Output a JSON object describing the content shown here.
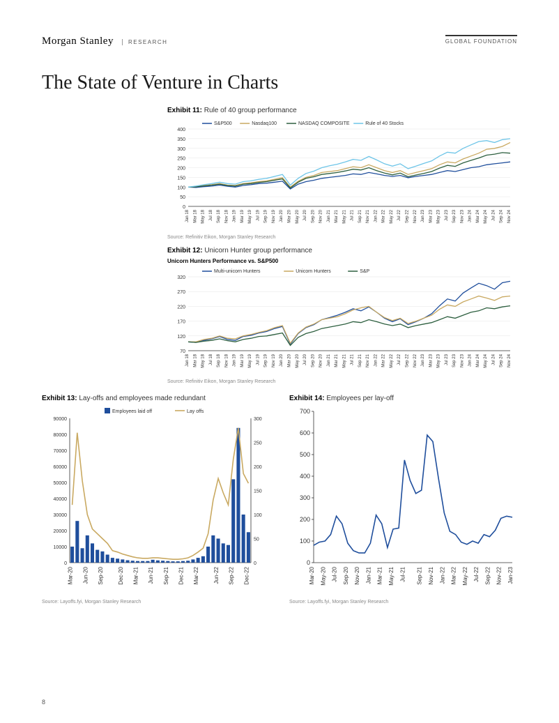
{
  "header": {
    "brand": "Morgan Stanley",
    "sub": "RESEARCH",
    "right": "GLOBAL FOUNDATION"
  },
  "title": "The State of Venture in Charts",
  "page_number": "8",
  "exhibit11": {
    "label": "Exhibit 11:",
    "title": "Rule of 40 group performance",
    "source": "Source: Refinitiv Eikon, Morgan Stanley Research",
    "type": "line",
    "x_labels": [
      "Jan 18",
      "Mar 18",
      "May 18",
      "Jul 18",
      "Sep 18",
      "Nov 18",
      "Jan 19",
      "Mar 19",
      "May 19",
      "Jul 19",
      "Sep 19",
      "Nov 19",
      "Jan 20",
      "Mar 20",
      "May 20",
      "Jul 20",
      "Sep 20",
      "Nov 20",
      "Jan 21",
      "Mar 21",
      "May 21",
      "Jul 21",
      "Sep 21",
      "Nov 21",
      "Jan 22",
      "Mar 22",
      "May 22",
      "Jul 22",
      "Sep 22",
      "Nov 22",
      "Jan 23",
      "Mar 23",
      "May 23",
      "Jul 23",
      "Sep 23",
      "Nov 23",
      "Jan 24",
      "Mar 24",
      "May 24",
      "Jul 24",
      "Sep 24",
      "Nov 24"
    ],
    "ylim": [
      0,
      400
    ],
    "ytick_step": 50,
    "series": [
      {
        "name": "S&P500",
        "color": "#1f4e9c",
        "values": [
          100,
          98,
          102,
          105,
          110,
          104,
          100,
          108,
          112,
          118,
          120,
          125,
          130,
          90,
          115,
          128,
          135,
          145,
          150,
          155,
          160,
          168,
          165,
          175,
          168,
          160,
          155,
          160,
          148,
          155,
          160,
          165,
          175,
          185,
          180,
          190,
          200,
          205,
          215,
          220,
          225,
          230
        ]
      },
      {
        "name": "Nasdaq100",
        "color": "#c9a961",
        "values": [
          100,
          102,
          108,
          112,
          118,
          110,
          108,
          118,
          122,
          128,
          132,
          140,
          148,
          100,
          130,
          150,
          160,
          175,
          180,
          185,
          195,
          205,
          200,
          215,
          200,
          185,
          175,
          185,
          165,
          175,
          185,
          195,
          215,
          230,
          225,
          245,
          260,
          275,
          295,
          300,
          310,
          330
        ]
      },
      {
        "name": "NASDAQ COMPOSITE",
        "color": "#2d5f3f",
        "values": [
          100,
          101,
          106,
          110,
          115,
          108,
          105,
          115,
          118,
          124,
          128,
          135,
          142,
          95,
          125,
          145,
          153,
          165,
          170,
          175,
          183,
          192,
          188,
          200,
          185,
          172,
          163,
          172,
          153,
          162,
          170,
          180,
          198,
          212,
          207,
          225,
          238,
          250,
          265,
          270,
          278,
          275
        ]
      },
      {
        "name": "Rule of 40 Stocks",
        "color": "#6ec5e8",
        "values": [
          100,
          105,
          112,
          118,
          125,
          118,
          115,
          128,
          132,
          140,
          145,
          155,
          165,
          110,
          145,
          170,
          182,
          200,
          210,
          218,
          230,
          243,
          238,
          258,
          240,
          220,
          208,
          220,
          195,
          208,
          222,
          235,
          260,
          280,
          275,
          300,
          318,
          335,
          340,
          330,
          345,
          350
        ]
      }
    ]
  },
  "exhibit12": {
    "label": "Exhibit 12:",
    "title": "Unicorn Hunter group performance",
    "subtitle": "Unicorn Hunters Performance vs. S&P500",
    "source": "Source: Refinitiv Eikon, Morgan Stanley Research",
    "type": "line",
    "x_labels": [
      "Jan 18",
      "Mar 18",
      "May 18",
      "Jul 18",
      "Sep 18",
      "Nov 18",
      "Jan 19",
      "Mar 19",
      "May 19",
      "Jul 19",
      "Sep 19",
      "Nov 19",
      "Jan 20",
      "Mar 20",
      "May 20",
      "Jul 20",
      "Sep 20",
      "Nov 20",
      "Jan 21",
      "Mar 21",
      "May 21",
      "Jul 21",
      "Sep 21",
      "Nov 21",
      "Jan 22",
      "Mar 22",
      "May 22",
      "Jul 22",
      "Sep 22",
      "Nov 22",
      "Jan 23",
      "Mar 23",
      "May 23",
      "Jul 23",
      "Sep 23",
      "Nov 23",
      "Jan 24",
      "Mar 24",
      "May 24",
      "Jul 24",
      "Sep 24",
      "Nov 24"
    ],
    "ylim": [
      70,
      320
    ],
    "ytick_step": 50,
    "series": [
      {
        "name": "Multi-unicorn Hunters",
        "color": "#1f4e9c",
        "values": [
          100,
          98,
          105,
          110,
          118,
          108,
          105,
          118,
          122,
          130,
          135,
          145,
          152,
          92,
          128,
          148,
          158,
          175,
          182,
          190,
          200,
          212,
          205,
          218,
          200,
          180,
          168,
          178,
          158,
          168,
          180,
          195,
          222,
          245,
          238,
          265,
          282,
          298,
          290,
          278,
          300,
          305
        ]
      },
      {
        "name": "Unicorn Hunters",
        "color": "#c9a961",
        "values": [
          100,
          100,
          108,
          112,
          120,
          112,
          110,
          120,
          125,
          132,
          138,
          148,
          155,
          95,
          130,
          150,
          160,
          175,
          180,
          185,
          195,
          208,
          215,
          220,
          200,
          182,
          172,
          180,
          162,
          170,
          180,
          190,
          210,
          225,
          220,
          235,
          245,
          255,
          248,
          240,
          252,
          255
        ]
      },
      {
        "name": "S&P",
        "color": "#2d5f3f",
        "values": [
          100,
          98,
          102,
          105,
          110,
          104,
          100,
          108,
          112,
          118,
          120,
          125,
          130,
          88,
          115,
          128,
          135,
          145,
          150,
          155,
          160,
          168,
          165,
          175,
          168,
          160,
          155,
          160,
          148,
          155,
          160,
          165,
          175,
          185,
          180,
          190,
          200,
          205,
          215,
          212,
          218,
          222
        ]
      }
    ]
  },
  "exhibit13": {
    "label": "Exhibit 13:",
    "title": "Lay-offs and employees made redundant",
    "source": "Source: Layoffs.fyi, Morgan Stanley Research",
    "type": "bar-line",
    "x_labels": [
      "Mar-20",
      "Jun-20",
      "Sep-20",
      "Dec-20",
      "Mar-21",
      "Jun-21",
      "Sep-21",
      "Dec-21",
      "Mar-22",
      "Jun-22",
      "Sep-22",
      "Dec-22"
    ],
    "y_left": {
      "lim": [
        0,
        90000
      ],
      "step": 10000
    },
    "y_right": {
      "lim": [
        0,
        300
      ],
      "step": 50
    },
    "bars": {
      "name": "Employees laid off",
      "color": "#1f4e9c",
      "values": [
        10000,
        26000,
        9000,
        17000,
        12000,
        8000,
        7000,
        5000,
        3000,
        2500,
        2000,
        1500,
        1200,
        1000,
        1000,
        1000,
        1800,
        1400,
        1200,
        1000,
        800,
        800,
        1000,
        1200,
        2000,
        3000,
        4000,
        10000,
        17000,
        15000,
        12000,
        11000,
        52000,
        84000,
        30000,
        19000
      ]
    },
    "line": {
      "name": "Lay offs",
      "color": "#c9a961",
      "values": [
        120,
        270,
        170,
        100,
        70,
        60,
        50,
        40,
        25,
        22,
        18,
        15,
        12,
        10,
        9,
        9,
        10,
        10,
        9,
        8,
        7,
        7,
        8,
        10,
        15,
        22,
        30,
        60,
        130,
        175,
        145,
        120,
        215,
        280,
        185,
        165
      ]
    }
  },
  "exhibit14": {
    "label": "Exhibit 14:",
    "title": "Employees per lay-off",
    "source": "Source: Layoffs.fyi, Morgan Stanley Research",
    "type": "line",
    "x_labels": [
      "Mar-20",
      "May-20",
      "Jul-20",
      "Sep-20",
      "Nov-20",
      "Jan-21",
      "Mar-21",
      "May-21",
      "Jul-21",
      "Sep-21",
      "Nov-21",
      "Jan-22",
      "Mar-22",
      "May-22",
      "Jul-22",
      "Sep-22",
      "Nov-22",
      "Jan-23"
    ],
    "ylim": [
      0,
      700
    ],
    "ytick_step": 100,
    "series": [
      {
        "name": "Employees per lay-off",
        "color": "#1f4e9c",
        "values": [
          80,
          95,
          100,
          130,
          215,
          180,
          90,
          55,
          45,
          45,
          90,
          220,
          180,
          70,
          155,
          160,
          475,
          380,
          320,
          335,
          590,
          560,
          390,
          230,
          145,
          130,
          95,
          85,
          100,
          90,
          130,
          120,
          150,
          205,
          215,
          210
        ]
      }
    ]
  },
  "colors": {
    "grid": "#e5e5e5",
    "axis": "#333333",
    "text": "#333333",
    "bg": "#ffffff"
  }
}
